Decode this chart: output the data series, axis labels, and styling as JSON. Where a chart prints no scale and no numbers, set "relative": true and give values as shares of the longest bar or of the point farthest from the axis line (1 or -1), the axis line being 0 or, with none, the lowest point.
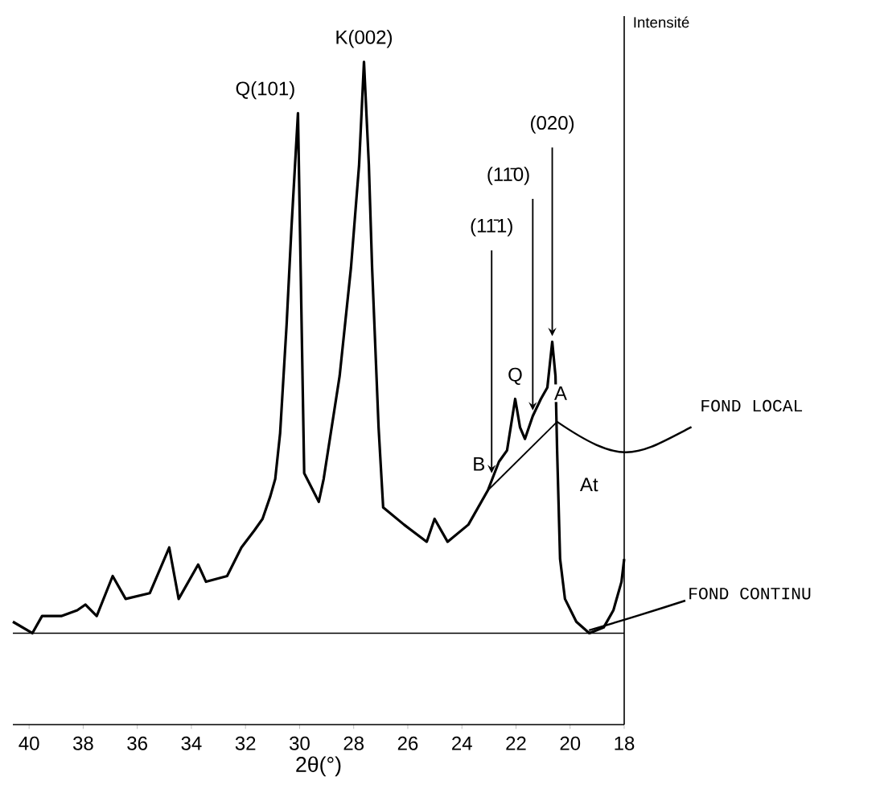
{
  "chart_data": {
    "type": "line",
    "relative": true,
    "xlabel": "2θ(°)",
    "ylabel": "Intensité",
    "xlim": [
      40.6,
      18
    ],
    "xticks": [
      40,
      38,
      36,
      34,
      32,
      30,
      28,
      26,
      24,
      22,
      20,
      18
    ],
    "series": [
      {
        "color": "#000000",
        "x": [
          40.6,
          39.88,
          39.52,
          38.81,
          38.22,
          37.92,
          37.5,
          36.91,
          36.43,
          35.54,
          34.82,
          34.47,
          33.75,
          33.46,
          32.68,
          32.15,
          31.67,
          31.37,
          31.08,
          30.9,
          30.72,
          30.48,
          30.3,
          30.06,
          29.83,
          29.29,
          29.11,
          28.52,
          28.1,
          27.8,
          27.62,
          27.44,
          27.32,
          27.08,
          26.91,
          26.14,
          25.3,
          25.01,
          24.53,
          23.76,
          23.04,
          22.63,
          22.33,
          22.03,
          21.85,
          21.67,
          21.38,
          21.08,
          20.84,
          20.66,
          20.54,
          20.48,
          20.37,
          20.19,
          19.77,
          19.29,
          18.76,
          18.4,
          18.1,
          18.0
        ],
        "values": [
          0.02,
          0.0,
          0.03,
          0.03,
          0.04,
          0.05,
          0.03,
          0.1,
          0.06,
          0.07,
          0.15,
          0.06,
          0.12,
          0.09,
          0.1,
          0.15,
          0.18,
          0.2,
          0.24,
          0.27,
          0.35,
          0.54,
          0.71,
          0.91,
          0.28,
          0.23,
          0.27,
          0.45,
          0.64,
          0.82,
          1.0,
          0.82,
          0.64,
          0.36,
          0.22,
          0.19,
          0.16,
          0.2,
          0.16,
          0.19,
          0.25,
          0.3,
          0.32,
          0.41,
          0.36,
          0.34,
          0.38,
          0.41,
          0.43,
          0.51,
          0.45,
          0.32,
          0.13,
          0.06,
          0.02,
          0.0,
          0.01,
          0.04,
          0.09,
          0.13
        ]
      },
      {
        "name": "FOND LOCAL",
        "type": "line",
        "color": "#000000",
        "x": [
          23.04,
          20.48
        ],
        "values": [
          0.25,
          0.37
        ]
      }
    ],
    "ref_lines": [
      {
        "axis": "y",
        "value": 0,
        "label": "FOND CONTINU",
        "color": "#000000"
      }
    ],
    "annotations": [
      {
        "text": "Q(101)",
        "x": 30.06,
        "y": 0.91
      },
      {
        "text": "K(002)",
        "x": 27.62,
        "y": 1.0
      },
      {
        "text": "(11̄1)",
        "x": 22.9,
        "y": 0.27
      },
      {
        "text": "(11̄0)",
        "x": 21.38,
        "y": 0.38
      },
      {
        "text": "(020)",
        "x": 20.66,
        "y": 0.51
      },
      {
        "text": "Q",
        "x": 22.03,
        "y": 0.41
      },
      {
        "text": "A",
        "x": 20.35,
        "y": 0.42
      },
      {
        "text": "B",
        "x": 23.04,
        "y": 0.25
      },
      {
        "text": "At",
        "x": 19.3,
        "y": 0.26
      }
    ]
  }
}
